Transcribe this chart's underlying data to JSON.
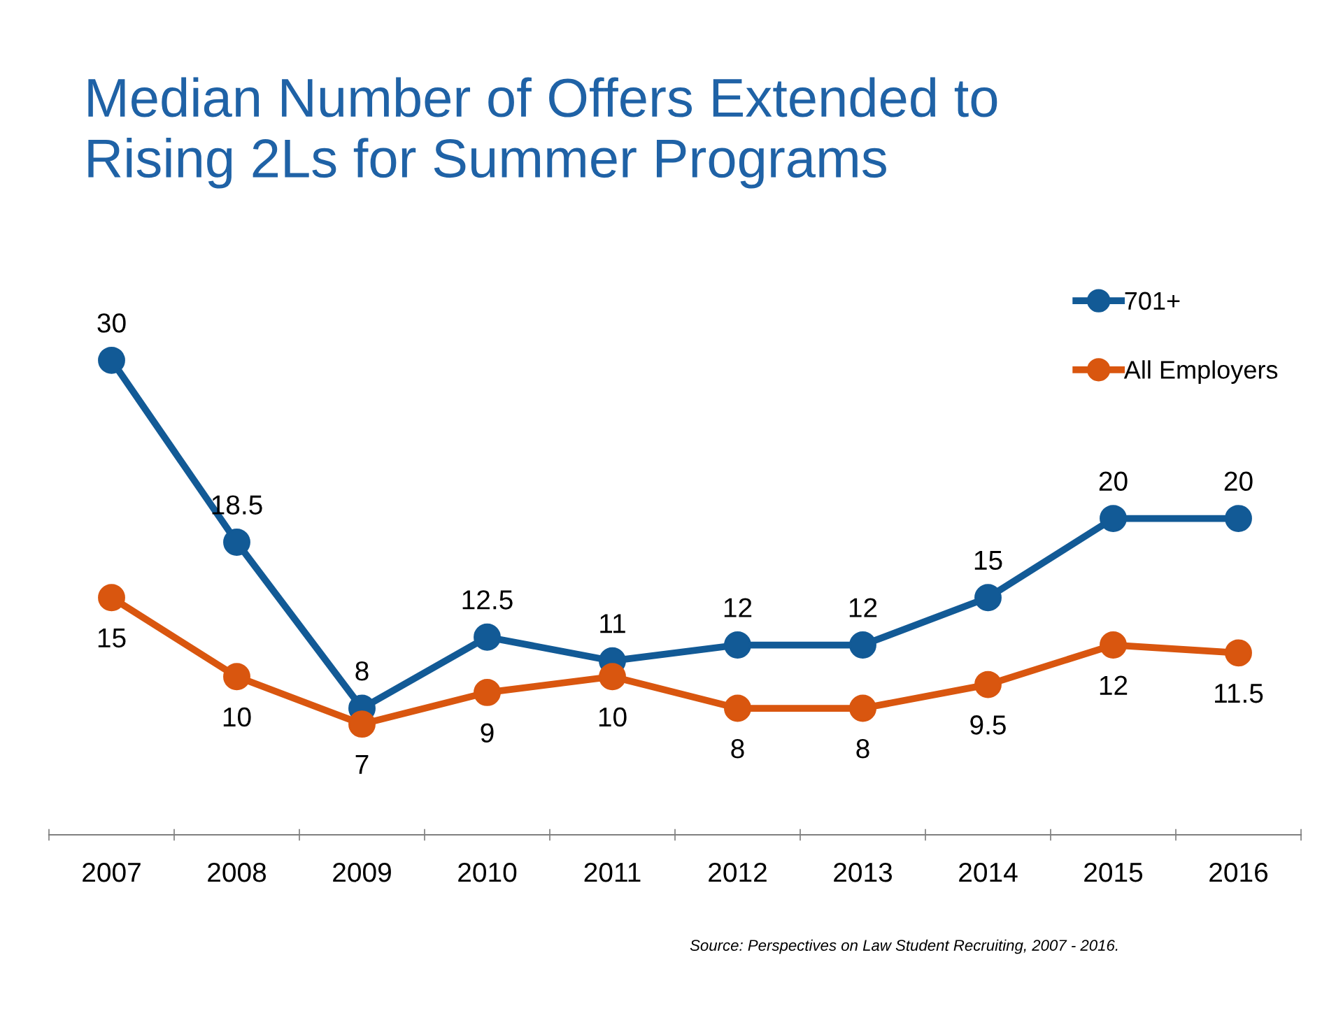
{
  "chart_data": {
    "type": "line",
    "title": "Median Number of Offers Extended to\nRising 2Ls for Summer Programs",
    "categories": [
      "2007",
      "2008",
      "2009",
      "2010",
      "2011",
      "2012",
      "2013",
      "2014",
      "2015",
      "2016"
    ],
    "series": [
      {
        "name": "701+",
        "color": "#125a96",
        "values": [
          30,
          18.5,
          8,
          12.5,
          11,
          12,
          12,
          15,
          20,
          20
        ]
      },
      {
        "name": "All Employers",
        "color": "#d9560f",
        "values": [
          15,
          10,
          7,
          9,
          10,
          8,
          8,
          9.5,
          12,
          11.5
        ]
      }
    ],
    "data_labels": true,
    "marker": "circle",
    "line_style": "solid",
    "legend": "top right",
    "grid": false,
    "annotations": [
      "Source: Perspectives on Law Student Recruiting, 2007 - 2016."
    ]
  }
}
